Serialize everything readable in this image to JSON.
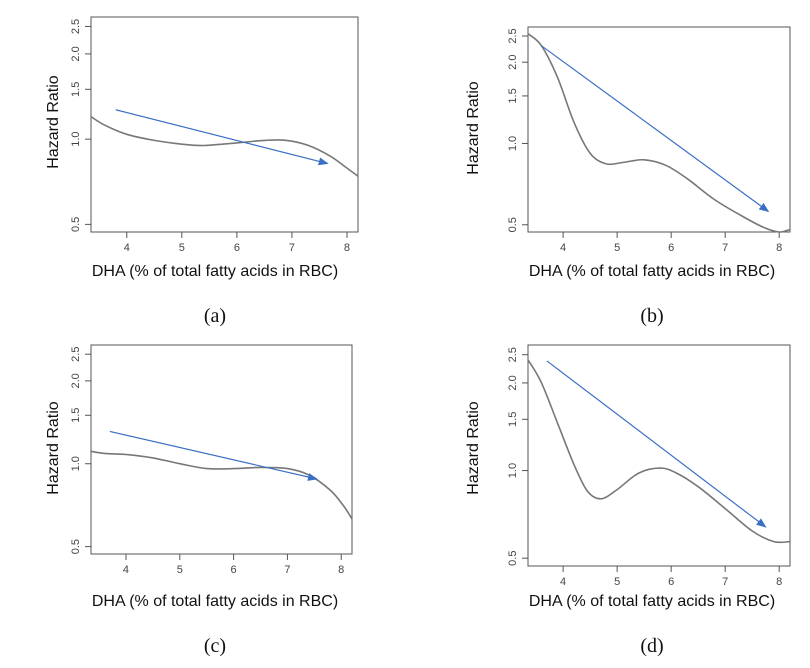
{
  "chart_data": [
    {
      "type": "line",
      "panel": "a",
      "xlabel": "DHA (% of total fatty acids in RBC)",
      "ylabel": "Hazard Ratio",
      "x_ticks": [
        "4",
        "5",
        "6",
        "7",
        "8"
      ],
      "y_ticks": [
        "0.5",
        "1.0",
        "1.5",
        "2.0",
        "2.5"
      ],
      "xlim": [
        3.35,
        8.2
      ],
      "ylim": [
        0.47,
        2.7
      ],
      "y_scale": "log",
      "series": [
        {
          "x": [
            3.35,
            3.6,
            4.0,
            4.5,
            5.0,
            5.4,
            6.0,
            6.5,
            6.9,
            7.3,
            7.7,
            8.0,
            8.2
          ],
          "values": [
            1.2,
            1.12,
            1.04,
            0.99,
            0.96,
            0.95,
            0.97,
            0.99,
            0.99,
            0.95,
            0.87,
            0.79,
            0.74
          ]
        }
      ],
      "arrow": {
        "from": [
          3.8,
          1.27
        ],
        "to": [
          7.65,
          0.82
        ]
      }
    },
    {
      "type": "line",
      "panel": "b",
      "xlabel": "DHA (% of total fatty acids in RBC)",
      "ylabel": "Hazard Ratio",
      "x_ticks": [
        "4",
        "5",
        "6",
        "7",
        "8"
      ],
      "y_ticks": [
        "0.5",
        "1.0",
        "1.5",
        "2.0",
        "2.5"
      ],
      "xlim": [
        3.35,
        8.2
      ],
      "ylim": [
        0.47,
        2.7
      ],
      "y_scale": "log",
      "series": [
        {
          "x": [
            3.35,
            3.6,
            3.9,
            4.2,
            4.5,
            4.8,
            5.1,
            5.5,
            5.9,
            6.3,
            6.8,
            7.3,
            7.7,
            8.0,
            8.2
          ],
          "values": [
            2.55,
            2.3,
            1.75,
            1.2,
            0.92,
            0.84,
            0.85,
            0.87,
            0.83,
            0.74,
            0.62,
            0.54,
            0.49,
            0.47,
            0.48
          ]
        }
      ],
      "arrow": {
        "from": [
          3.6,
          2.3
        ],
        "to": [
          7.8,
          0.56
        ]
      }
    },
    {
      "type": "line",
      "panel": "c",
      "xlabel": "DHA (% of total fatty acids in RBC)",
      "ylabel": "Hazard Ratio",
      "x_ticks": [
        "4",
        "5",
        "6",
        "7",
        "8"
      ],
      "y_ticks": [
        "0.5",
        "1.0",
        "1.5",
        "2.0",
        "2.5"
      ],
      "xlim": [
        3.35,
        8.2
      ],
      "ylim": [
        0.47,
        2.7
      ],
      "y_scale": "log",
      "series": [
        {
          "x": [
            3.35,
            3.6,
            4.0,
            4.5,
            5.0,
            5.5,
            6.0,
            6.5,
            7.0,
            7.4,
            7.8,
            8.05,
            8.2
          ],
          "values": [
            1.11,
            1.09,
            1.08,
            1.05,
            1.0,
            0.96,
            0.96,
            0.97,
            0.96,
            0.91,
            0.8,
            0.7,
            0.63
          ]
        }
      ],
      "arrow": {
        "from": [
          3.7,
          1.31
        ],
        "to": [
          7.55,
          0.88
        ]
      }
    },
    {
      "type": "line",
      "panel": "d",
      "xlabel": "DHA (% of total fatty acids in RBC)",
      "ylabel": "Hazard Ratio",
      "x_ticks": [
        "4",
        "5",
        "6",
        "7",
        "8"
      ],
      "y_ticks": [
        "0.5",
        "1.0",
        "1.5",
        "2.0",
        "2.5"
      ],
      "xlim": [
        3.35,
        8.2
      ],
      "ylim": [
        0.47,
        2.7
      ],
      "y_scale": "log",
      "series": [
        {
          "x": [
            3.35,
            3.6,
            3.9,
            4.2,
            4.45,
            4.7,
            5.0,
            5.4,
            5.8,
            6.1,
            6.5,
            7.0,
            7.5,
            7.9,
            8.2
          ],
          "values": [
            2.4,
            2.0,
            1.45,
            1.05,
            0.85,
            0.8,
            0.86,
            0.98,
            1.02,
            0.98,
            0.88,
            0.74,
            0.62,
            0.57,
            0.57
          ]
        }
      ],
      "arrow": {
        "from": [
          3.7,
          2.38
        ],
        "to": [
          7.75,
          0.64
        ]
      }
    }
  ],
  "panel_labels": [
    "(a)",
    "(b)",
    "(c)",
    "(d)"
  ],
  "colors": {
    "curve": "#777777",
    "arrow": "#3a6fc4",
    "axis": "#555555"
  }
}
